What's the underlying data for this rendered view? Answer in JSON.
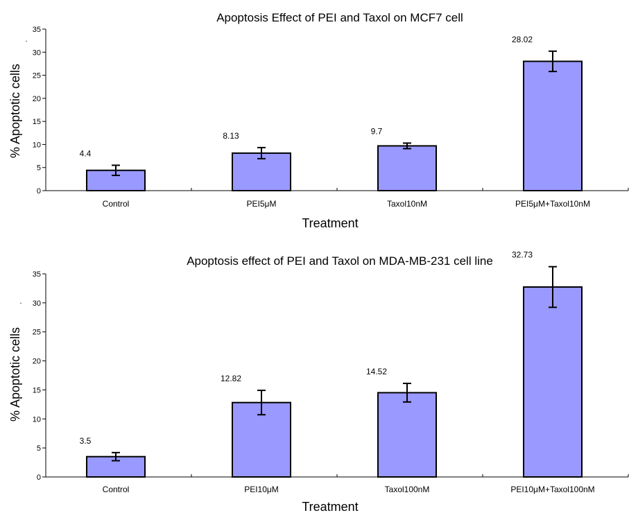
{
  "chart_data": [
    {
      "type": "bar",
      "title": "Apoptosis Effect of PEI and Taxol on MCF7 cell",
      "xlabel": "Treatment",
      "ylabel": "% Apoptotic cells",
      "ylim": [
        0,
        35
      ],
      "yticks": [
        0,
        5,
        10,
        15,
        20,
        25,
        30,
        35
      ],
      "grid": false,
      "categories": [
        "Control",
        "PEI5μM",
        "Taxol10nM",
        "PEI5μM+Taxol10nM"
      ],
      "values": [
        4.4,
        8.13,
        9.7,
        28.02
      ],
      "value_labels": [
        "4.4",
        "8.13",
        "9.7",
        "28.02"
      ],
      "error": [
        1.1,
        1.2,
        0.6,
        2.2
      ],
      "bar_color": "#9999ff",
      "marker": "."
    },
    {
      "type": "bar",
      "title": "Apoptosis effect of PEI and Taxol on MDA-MB-231 cell line",
      "xlabel": "Treatment",
      "ylabel": "% Apoptotic cells",
      "ylim": [
        0,
        35
      ],
      "yticks": [
        0,
        5,
        10,
        15,
        20,
        25,
        30,
        35
      ],
      "grid": false,
      "categories": [
        "Control",
        "PEI10μM",
        "Taxol100nM",
        "PEI10μM+Taxol100nM"
      ],
      "values": [
        3.5,
        12.82,
        14.52,
        32.73
      ],
      "value_labels": [
        "3.5",
        "12.82",
        "14.52",
        "32.73"
      ],
      "error": [
        0.7,
        2.1,
        1.6,
        3.5
      ],
      "bar_color": "#9999ff",
      "marker": "."
    }
  ]
}
